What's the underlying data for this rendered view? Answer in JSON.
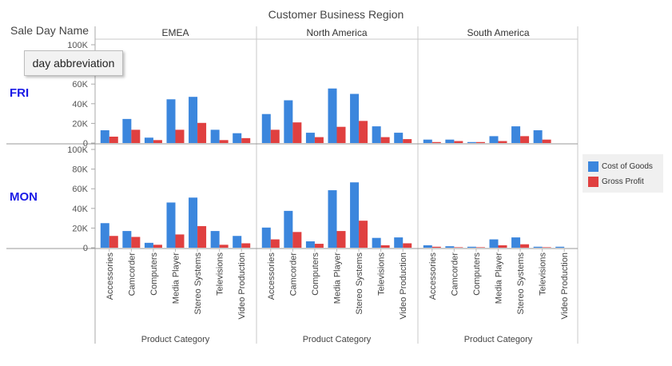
{
  "chart_data": {
    "type": "bar",
    "title": "Customer Business Region",
    "row_header": "Sale Day Name",
    "tooltip": "day abbreviation",
    "xlabel": "Product Category",
    "columns": [
      "EMEA",
      "North America",
      "South America"
    ],
    "rows": [
      "FRI",
      "MON"
    ],
    "categories": [
      "Accessories",
      "Camcorder",
      "Computers",
      "Media Player",
      "Stereo Systems",
      "Televisions",
      "Video Production"
    ],
    "yticks": [
      "0",
      "20K",
      "40K",
      "60K",
      "80K",
      "100K"
    ],
    "ylim": [
      0,
      100000
    ],
    "series_names": [
      "Cost of Goods",
      "Gross Profit"
    ],
    "colors": {
      "cost": "#3b86dd",
      "profit": "#e04040",
      "row_label": "#1a1ae6"
    },
    "panels": [
      {
        "row": "FRI",
        "column": "EMEA",
        "cost": [
          13000,
          24500,
          5500,
          44500,
          47000,
          13500,
          10000
        ],
        "profit": [
          6500,
          13500,
          3000,
          13500,
          20500,
          3000,
          5000
        ]
      },
      {
        "row": "FRI",
        "column": "North America",
        "cost": [
          29500,
          43500,
          10500,
          55500,
          50000,
          17000,
          10500
        ],
        "profit": [
          13500,
          21000,
          6000,
          16500,
          22500,
          6000,
          4000
        ]
      },
      {
        "row": "FRI",
        "column": "South America",
        "cost": [
          3500,
          3500,
          1000,
          7000,
          17000,
          13000,
          0
        ],
        "profit": [
          1000,
          2000,
          1000,
          2000,
          7000,
          3500,
          0
        ]
      },
      {
        "row": "MON",
        "column": "EMEA",
        "cost": [
          25000,
          17000,
          5000,
          46000,
          51000,
          17000,
          12000
        ],
        "profit": [
          12000,
          11000,
          3000,
          13500,
          22000,
          3000,
          4500
        ]
      },
      {
        "row": "MON",
        "column": "North America",
        "cost": [
          20500,
          37500,
          6500,
          58500,
          66500,
          10000,
          10500
        ],
        "profit": [
          8500,
          16000,
          4000,
          17000,
          27500,
          2500,
          4500
        ]
      },
      {
        "row": "MON",
        "column": "South America",
        "cost": [
          2500,
          1500,
          1000,
          8500,
          10500,
          1000,
          1000
        ],
        "profit": [
          1000,
          500,
          500,
          2500,
          3500,
          500,
          0
        ]
      }
    ]
  }
}
